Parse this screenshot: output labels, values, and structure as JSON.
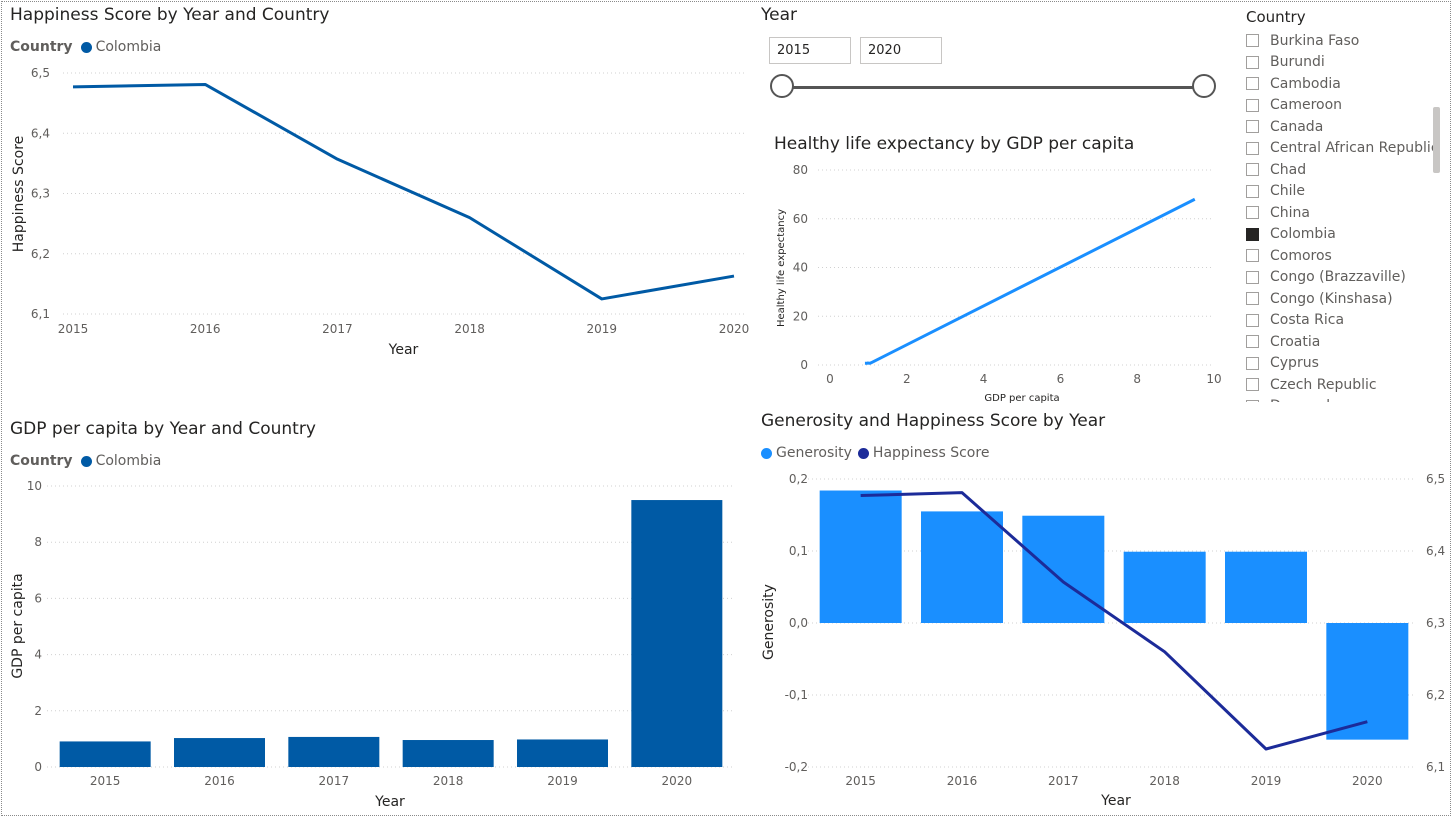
{
  "country_slicer": {
    "title": "Country",
    "items": [
      {
        "label": "Burkina Faso",
        "checked": false
      },
      {
        "label": "Burundi",
        "checked": false
      },
      {
        "label": "Cambodia",
        "checked": false
      },
      {
        "label": "Cameroon",
        "checked": false
      },
      {
        "label": "Canada",
        "checked": false
      },
      {
        "label": "Central African Republic",
        "checked": false
      },
      {
        "label": "Chad",
        "checked": false
      },
      {
        "label": "Chile",
        "checked": false
      },
      {
        "label": "China",
        "checked": false
      },
      {
        "label": "Colombia",
        "checked": true
      },
      {
        "label": "Comoros",
        "checked": false
      },
      {
        "label": "Congo (Brazzaville)",
        "checked": false
      },
      {
        "label": "Congo (Kinshasa)",
        "checked": false
      },
      {
        "label": "Costa Rica",
        "checked": false
      },
      {
        "label": "Croatia",
        "checked": false
      },
      {
        "label": "Cyprus",
        "checked": false
      },
      {
        "label": "Czech Republic",
        "checked": false
      },
      {
        "label": "Denmark",
        "checked": false
      }
    ]
  },
  "year_slicer": {
    "title": "Year",
    "start": "2015",
    "end": "2020"
  },
  "colors": {
    "colombia": "#005aa5",
    "light_blue": "#1a8fff",
    "navy": "#1c2b99",
    "axis_text": "#605e5c",
    "grid": "#d0d0d0"
  },
  "chart_data": [
    {
      "id": "happiness",
      "type": "line",
      "title": "Happiness Score by Year and Country",
      "legend_title": "Country",
      "xlabel": "Year",
      "ylabel": "Happiness Score",
      "x": [
        "2015",
        "2016",
        "2017",
        "2018",
        "2019",
        "2020"
      ],
      "yticks": [
        "6,1",
        "6,2",
        "6,3",
        "6,4",
        "6,5"
      ],
      "ylim": [
        6.1,
        6.5
      ],
      "series": [
        {
          "name": "Colombia",
          "values": [
            6.477,
            6.481,
            6.357,
            6.26,
            6.125,
            6.163
          ]
        }
      ]
    },
    {
      "id": "gdp",
      "type": "bar",
      "title": "GDP per capita by Year and Country",
      "legend_title": "Country",
      "xlabel": "Year",
      "ylabel": "GDP per capita",
      "categories": [
        "2015",
        "2016",
        "2017",
        "2018",
        "2019",
        "2020"
      ],
      "yticks": [
        "0",
        "2",
        "4",
        "6",
        "8",
        "10"
      ],
      "ylim": [
        0,
        10
      ],
      "series": [
        {
          "name": "Colombia",
          "values": [
            0.91,
            1.03,
            1.07,
            0.96,
            0.98,
            9.5
          ]
        }
      ]
    },
    {
      "id": "life",
      "type": "line",
      "title": "Healthy life expectancy by GDP per capita",
      "xlabel": "GDP per capita",
      "ylabel": "Healthy life expectancy",
      "xticks": [
        "0",
        "2",
        "4",
        "6",
        "8",
        "10"
      ],
      "yticks": [
        "0",
        "20",
        "40",
        "60",
        "80"
      ],
      "xlim": [
        0,
        10
      ],
      "ylim": [
        0,
        80
      ],
      "points": [
        [
          0.91,
          0.7
        ],
        [
          0.96,
          0.7
        ],
        [
          0.98,
          0.8
        ],
        [
          1.03,
          0.7
        ],
        [
          1.07,
          0.9
        ],
        [
          9.5,
          68
        ]
      ]
    },
    {
      "id": "generosity",
      "type": "bar",
      "title": "Generosity and Happiness Score by Year",
      "xlabel": "Year",
      "ylabel": "Generosity",
      "categories": [
        "2015",
        "2016",
        "2017",
        "2018",
        "2019",
        "2020"
      ],
      "yticks": [
        "-0,2",
        "-0,1",
        "0,0",
        "0,1",
        "0,2"
      ],
      "ylim": [
        -0.2,
        0.2
      ],
      "y2ticks": [
        "6,1",
        "6,2",
        "6,3",
        "6,4",
        "6,5"
      ],
      "y2lim": [
        6.1,
        6.5
      ],
      "series": [
        {
          "name": "Generosity",
          "values": [
            0.184,
            0.155,
            0.149,
            0.099,
            0.099,
            -0.162
          ]
        },
        {
          "name": "Happiness Score",
          "values": [
            6.477,
            6.481,
            6.357,
            6.26,
            6.125,
            6.163
          ]
        }
      ]
    }
  ]
}
